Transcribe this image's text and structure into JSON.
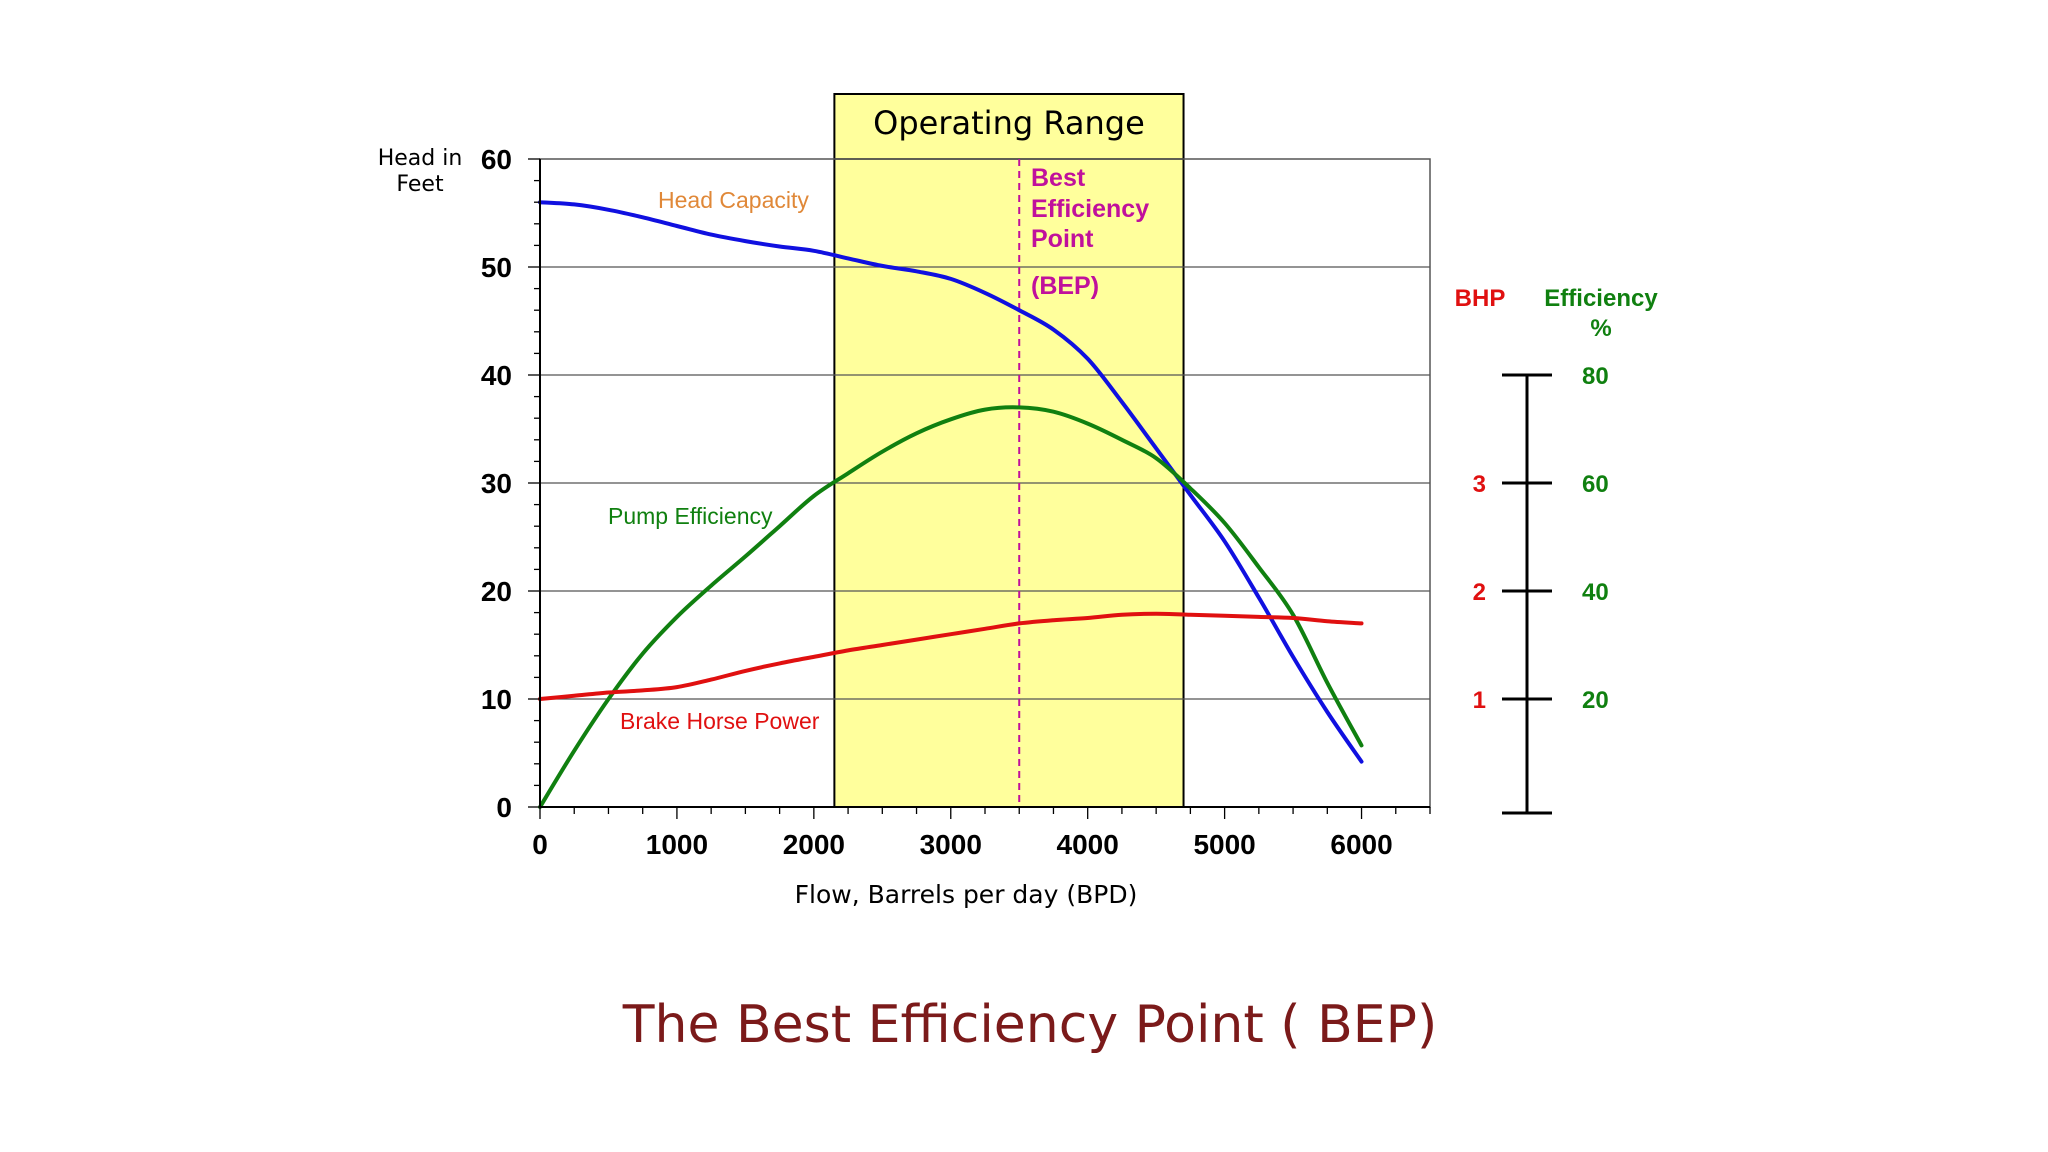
{
  "slide_title": "The Best Efficiency Point ( BEP)",
  "colors": {
    "head": "#1010e0",
    "efficiency": "#108010",
    "bhp": "#e01010",
    "bep": "#c0109c",
    "head_label": "#e08838",
    "operating_fill": "#ffff9c",
    "right_axis": "#000000"
  },
  "chart_data": {
    "type": "line",
    "title": "",
    "xlabel": "Flow, Barrels per day (BPD)",
    "ylabel": "Head in Feet",
    "xlim": [
      0,
      6500
    ],
    "ylim": [
      0,
      60
    ],
    "x_ticks": [
      0,
      1000,
      2000,
      3000,
      4000,
      5000,
      6000
    ],
    "y_ticks": [
      0,
      10,
      20,
      30,
      40,
      50,
      60
    ],
    "grid": "horizontal",
    "series": [
      {
        "name": "Head Capacity",
        "color": "#1010e0",
        "x": [
          0,
          250,
          500,
          750,
          1000,
          1250,
          1500,
          1750,
          2000,
          2250,
          2500,
          2750,
          3000,
          3250,
          3500,
          3750,
          4000,
          4250,
          4500,
          4750,
          5000,
          5250,
          5500,
          5750,
          6000
        ],
        "y": [
          56,
          55.8,
          55.3,
          54.6,
          53.8,
          53,
          52.4,
          51.9,
          51.5,
          50.8,
          50.1,
          49.6,
          48.9,
          47.6,
          46,
          44.2,
          41.5,
          37.5,
          33.2,
          28.9,
          24.6,
          19.4,
          13.9,
          8.8,
          4.2
        ]
      },
      {
        "name": "Pump Efficiency",
        "color": "#108010",
        "x": [
          0,
          250,
          500,
          750,
          1000,
          1250,
          1500,
          1750,
          2000,
          2250,
          2500,
          2750,
          3000,
          3250,
          3500,
          3750,
          4000,
          4250,
          4500,
          4750,
          5000,
          5250,
          5500,
          5750,
          6000
        ],
        "y": [
          0,
          5.2,
          10,
          14.2,
          17.6,
          20.5,
          23.2,
          26,
          28.8,
          30.9,
          32.9,
          34.6,
          35.9,
          36.8,
          37,
          36.6,
          35.5,
          34,
          32.3,
          29.5,
          26.3,
          22.2,
          17.8,
          11.5,
          5.7
        ]
      },
      {
        "name": "Brake Horse Power",
        "color": "#e01010",
        "x": [
          0,
          250,
          500,
          750,
          1000,
          1250,
          1500,
          1750,
          2000,
          2250,
          2500,
          2750,
          3000,
          3250,
          3500,
          3750,
          4000,
          4250,
          4500,
          4750,
          5000,
          5250,
          5500,
          5750,
          6000
        ],
        "y": [
          10,
          10.3,
          10.6,
          10.8,
          11.1,
          11.8,
          12.6,
          13.3,
          13.9,
          14.5,
          15,
          15.5,
          16,
          16.5,
          17,
          17.3,
          17.5,
          17.8,
          17.9,
          17.8,
          17.7,
          17.6,
          17.5,
          17.2,
          17
        ]
      }
    ],
    "operating_range": {
      "label": "Operating Range",
      "x_start": 2150,
      "x_end": 4700
    },
    "bep": {
      "x": 3500,
      "label_lines": [
        "Best",
        "Efficiency",
        "Point",
        "(BEP)"
      ]
    },
    "series_labels": {
      "head": "Head Capacity",
      "efficiency": "Pump Efficiency",
      "bhp": "Brake Horse Power"
    },
    "left_axis_label_lines": [
      "Head in",
      "Feet"
    ],
    "right_axis": {
      "bhp_title": "BHP",
      "efficiency_title_lines": [
        "Efficiency",
        "%"
      ],
      "bhp_ticks": [
        {
          "label": "1",
          "at_head": 10
        },
        {
          "label": "2",
          "at_head": 20
        },
        {
          "label": "3",
          "at_head": 30
        }
      ],
      "efficiency_ticks": [
        {
          "label": "20",
          "at_head": 10
        },
        {
          "label": "40",
          "at_head": 20
        },
        {
          "label": "60",
          "at_head": 30
        },
        {
          "label": "80",
          "at_head": 40
        }
      ]
    }
  }
}
